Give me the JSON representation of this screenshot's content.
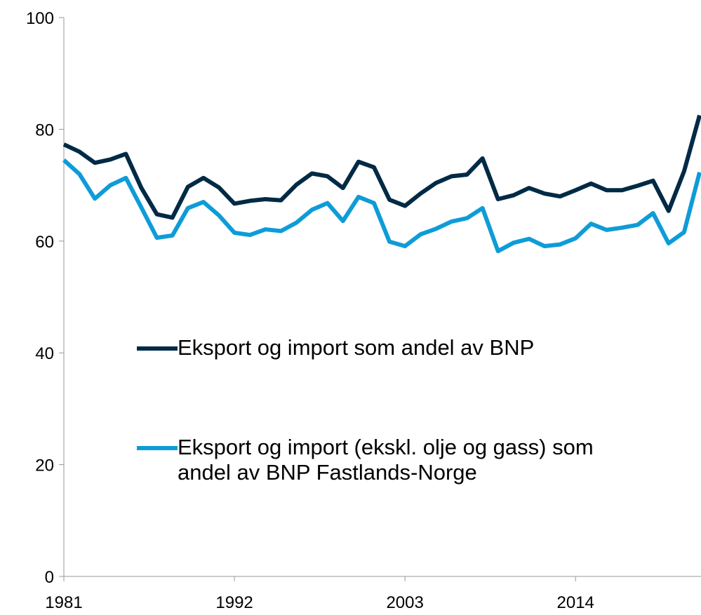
{
  "chart_data": {
    "type": "line",
    "x": [
      1981,
      1982,
      1983,
      1984,
      1985,
      1986,
      1987,
      1988,
      1989,
      1990,
      1991,
      1992,
      1993,
      1994,
      1995,
      1996,
      1997,
      1998,
      1999,
      2000,
      2001,
      2002,
      2003,
      2004,
      2005,
      2006,
      2007,
      2008,
      2009,
      2010,
      2011,
      2012,
      2013,
      2014,
      2015,
      2016,
      2017,
      2018,
      2019,
      2020,
      2021,
      2022
    ],
    "series": [
      {
        "name": "Eksport og import som andel av BNP",
        "color": "#002a45",
        "values": [
          77.3,
          76.0,
          74.0,
          74.6,
          75.6,
          69.5,
          64.8,
          64.2,
          69.7,
          71.3,
          69.6,
          66.7,
          67.2,
          67.5,
          67.3,
          70.1,
          72.1,
          71.6,
          69.5,
          74.2,
          73.2,
          67.4,
          66.3,
          68.5,
          70.4,
          71.6,
          71.9,
          74.8,
          67.5,
          68.2,
          69.5,
          68.5,
          68.0,
          69.1,
          70.3,
          69.1,
          69.1,
          69.9,
          70.8,
          65.4,
          72.5,
          82.5
        ]
      },
      {
        "name": "Eksport og import (ekskl. olje og gass) som andel av BNP Fastlands-Norge",
        "color": "#0e9cd8",
        "values": [
          74.5,
          72.0,
          67.6,
          70.0,
          71.3,
          66.0,
          60.6,
          61.0,
          65.9,
          67.0,
          64.6,
          61.5,
          61.1,
          62.1,
          61.8,
          63.3,
          65.6,
          66.8,
          63.6,
          67.9,
          66.8,
          59.9,
          59.1,
          61.2,
          62.2,
          63.5,
          64.1,
          65.9,
          58.2,
          59.7,
          60.4,
          59.1,
          59.4,
          60.5,
          63.1,
          62.0,
          62.4,
          62.9,
          65.0,
          59.6,
          61.6,
          72.3
        ]
      }
    ],
    "xlim": [
      1981,
      2022
    ],
    "xticks": [
      1981,
      1992,
      2003,
      2014
    ],
    "ylim": [
      0,
      100
    ],
    "yticks": [
      0,
      20,
      40,
      60,
      80,
      100
    ]
  }
}
